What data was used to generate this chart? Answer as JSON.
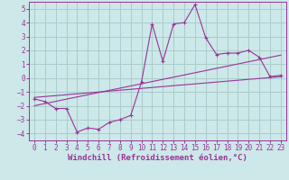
{
  "title": "",
  "xlabel": "Windchill (Refroidissement éolien,°C)",
  "ylabel": "",
  "bg_color": "#cce8e8",
  "grid_color": "#aacccc",
  "line_color": "#993399",
  "xlim": [
    -0.5,
    23.5
  ],
  "ylim": [
    -4.5,
    5.5
  ],
  "xticks": [
    0,
    1,
    2,
    3,
    4,
    5,
    6,
    7,
    8,
    9,
    10,
    11,
    12,
    13,
    14,
    15,
    16,
    17,
    18,
    19,
    20,
    21,
    22,
    23
  ],
  "yticks": [
    -4,
    -3,
    -2,
    -1,
    0,
    1,
    2,
    3,
    4,
    5
  ],
  "data_x": [
    0,
    1,
    2,
    3,
    4,
    5,
    6,
    7,
    8,
    9,
    10,
    11,
    12,
    13,
    14,
    15,
    16,
    17,
    18,
    19,
    20,
    21,
    22,
    23
  ],
  "data_y": [
    -1.5,
    -1.7,
    -2.2,
    -2.2,
    -3.9,
    -3.6,
    -3.7,
    -3.2,
    -3.0,
    -2.7,
    -0.3,
    3.9,
    1.2,
    3.9,
    4.0,
    5.3,
    2.9,
    1.7,
    1.8,
    1.8,
    2.0,
    1.5,
    0.1,
    0.2
  ],
  "trend1_x": [
    0,
    23
  ],
  "trend1_y": [
    -1.4,
    0.1
  ],
  "trend2_x": [
    0,
    23
  ],
  "trend2_y": [
    -2.0,
    1.65
  ],
  "tick_fontsize": 5.5,
  "xlabel_fontsize": 6.5
}
